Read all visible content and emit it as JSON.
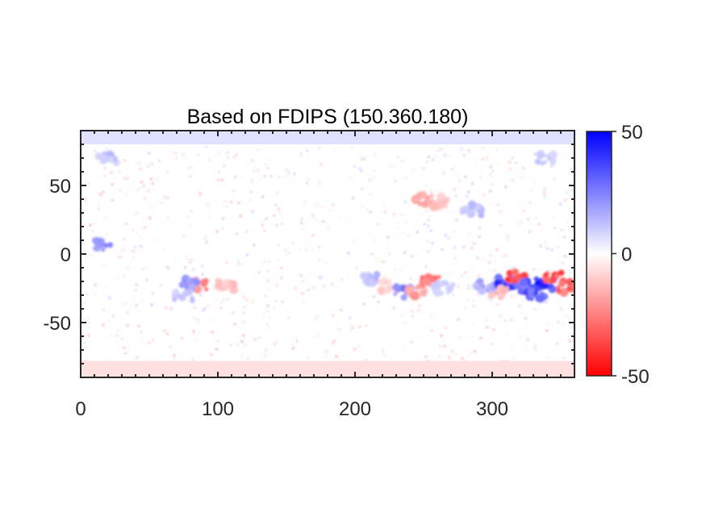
{
  "chart_data": {
    "type": "heatmap",
    "title": "Based on FDIPS (150.360.180)",
    "xlabel": "",
    "ylabel": "",
    "xlim": [
      0,
      360
    ],
    "ylim": [
      -90,
      90
    ],
    "x_ticks": [
      0,
      100,
      200,
      300
    ],
    "y_ticks": [
      -50,
      0,
      50
    ],
    "x_tick_labels": [
      "0",
      "100",
      "200",
      "300"
    ],
    "y_tick_labels": [
      "-50",
      "0",
      "50"
    ],
    "colorbar": {
      "range": [
        -50,
        50
      ],
      "ticks": [
        -50,
        0,
        50
      ],
      "tick_labels": [
        "-50",
        "0",
        "50"
      ],
      "colormap": "red-white-blue"
    },
    "colors": {
      "negative": "#ff0000",
      "zero": "#ffffff",
      "positive": "#0000ff",
      "axis": "#262626"
    },
    "regions": [
      {
        "lon": 85,
        "lat": -23,
        "value": -30
      },
      {
        "lon": 80,
        "lat": -22,
        "value": 25
      },
      {
        "lon": 75,
        "lat": -30,
        "value": 15
      },
      {
        "lon": 105,
        "lat": -24,
        "value": -15
      },
      {
        "lon": 15,
        "lat": 7,
        "value": 25
      },
      {
        "lon": 210,
        "lat": -18,
        "value": 18
      },
      {
        "lon": 225,
        "lat": -24,
        "value": -12
      },
      {
        "lon": 235,
        "lat": -28,
        "value": 30
      },
      {
        "lon": 245,
        "lat": -27,
        "value": -25
      },
      {
        "lon": 255,
        "lat": -20,
        "value": -30
      },
      {
        "lon": 265,
        "lat": -25,
        "value": 12
      },
      {
        "lon": 250,
        "lat": 40,
        "value": -20
      },
      {
        "lon": 260,
        "lat": 38,
        "value": -15
      },
      {
        "lon": 285,
        "lat": 32,
        "value": 15
      },
      {
        "lon": 295,
        "lat": -24,
        "value": 20
      },
      {
        "lon": 310,
        "lat": -20,
        "value": 45
      },
      {
        "lon": 318,
        "lat": -17,
        "value": -50
      },
      {
        "lon": 325,
        "lat": -24,
        "value": 40
      },
      {
        "lon": 338,
        "lat": -22,
        "value": 50
      },
      {
        "lon": 332,
        "lat": -30,
        "value": 45
      },
      {
        "lon": 345,
        "lat": -17,
        "value": -45
      },
      {
        "lon": 355,
        "lat": -24,
        "value": -35
      },
      {
        "lon": 305,
        "lat": -28,
        "value": -15
      },
      {
        "lon": 20,
        "lat": 70,
        "value": 15
      },
      {
        "lon": 340,
        "lat": 70,
        "value": 12
      }
    ],
    "polar_caps": {
      "north": 6,
      "south": -6
    }
  }
}
